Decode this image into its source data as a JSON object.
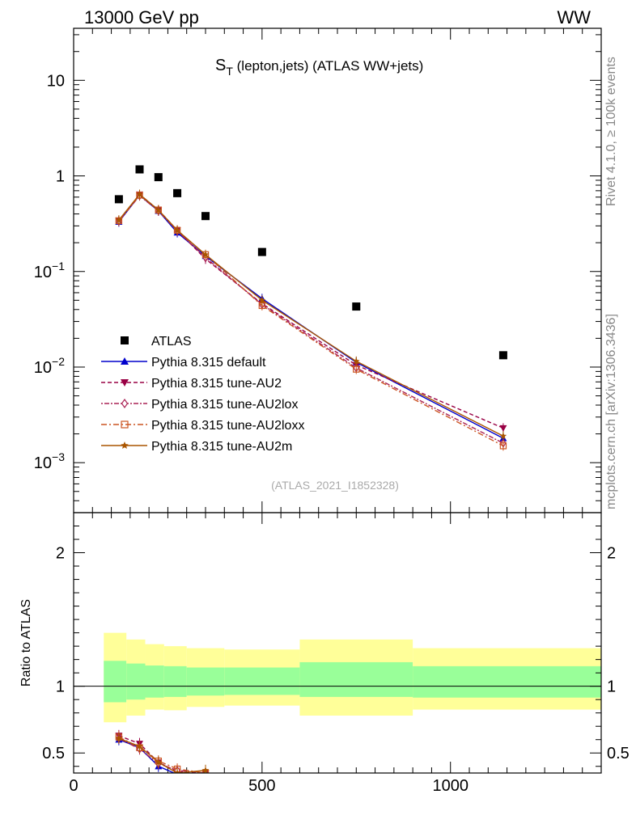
{
  "header": {
    "left_label": "13000 GeV pp",
    "right_label": "WW",
    "side_label_top": "Rivet 4.1.0, ≥ 100k events",
    "side_label_bottom": "mcplots.cern.ch [arXiv:1306.3436]"
  },
  "chart_data": [
    {
      "type": "line",
      "panel": "main",
      "title_main": "S",
      "title_sub": "T",
      "title_rest": " (lepton,jets) (ATLAS WW+jets)",
      "watermark": "(ATLAS_2021_I1852328)",
      "yscale": "log",
      "ylim": [
        0.0003,
        35
      ],
      "xlim": [
        0,
        1400
      ],
      "ytick_labels": [
        {
          "value": 10,
          "base": "10",
          "exp": ""
        },
        {
          "value": 1,
          "base": "1",
          "exp": ""
        },
        {
          "value": 0.1,
          "base": "10",
          "exp": "−1"
        },
        {
          "value": 0.01,
          "base": "10",
          "exp": "−2"
        },
        {
          "value": 0.001,
          "base": "10",
          "exp": "−3"
        }
      ],
      "data": {
        "name": "ATLAS",
        "x": [
          120,
          175,
          225,
          275,
          350,
          500,
          750,
          1140
        ],
        "y": [
          0.57,
          1.17,
          0.97,
          0.66,
          0.38,
          0.16,
          0.043,
          0.0133
        ]
      },
      "series": [
        {
          "name": "Pythia 8.315 default",
          "color": "#0000cc",
          "dash": "",
          "marker": "triangle-up",
          "x": [
            120,
            175,
            225,
            275,
            350,
            500,
            750,
            1140
          ],
          "y": [
            0.33,
            0.63,
            0.43,
            0.255,
            0.145,
            0.052,
            0.0112,
            0.0018
          ]
        },
        {
          "name": "Pythia 8.315 tune-AU2",
          "color": "#990044",
          "dash": "5,3",
          "marker": "triangle-down",
          "x": [
            120,
            175,
            225,
            275,
            350,
            500,
            750,
            1140
          ],
          "y": [
            0.34,
            0.64,
            0.44,
            0.27,
            0.135,
            0.046,
            0.0105,
            0.0023
          ]
        },
        {
          "name": "Pythia 8.315 tune-AU2lox",
          "color": "#aa2255",
          "dash": "2,2,6,2",
          "marker": "diamond",
          "x": [
            120,
            175,
            225,
            275,
            350,
            500,
            750,
            1140
          ],
          "y": [
            0.335,
            0.62,
            0.43,
            0.265,
            0.14,
            0.045,
            0.0098,
            0.0016
          ]
        },
        {
          "name": "Pythia 8.315 tune-AU2loxx",
          "color": "#cc5522",
          "dash": "7,3,2,3",
          "marker": "square",
          "x": [
            120,
            175,
            225,
            275,
            350,
            500,
            750,
            1140
          ],
          "y": [
            0.34,
            0.63,
            0.44,
            0.27,
            0.15,
            0.044,
            0.0095,
            0.0015
          ]
        },
        {
          "name": "Pythia 8.315 tune-AU2m",
          "color": "#aa5500",
          "dash": "",
          "marker": "star",
          "x": [
            120,
            175,
            225,
            275,
            350,
            500,
            750,
            1140
          ],
          "y": [
            0.345,
            0.64,
            0.44,
            0.27,
            0.15,
            0.05,
            0.0115,
            0.0019
          ]
        }
      ],
      "legend_placement": "lower-left"
    },
    {
      "type": "line",
      "panel": "ratio",
      "ylabel": "Ratio to ATLAS",
      "ylim": [
        0.35,
        2.3
      ],
      "xlim": [
        0,
        1400
      ],
      "ytick_labels": [
        "0.5",
        "1",
        "2"
      ],
      "xtick_labels": [
        "0",
        "500",
        "1000"
      ],
      "bands": {
        "bins": [
          [
            80,
            140
          ],
          [
            140,
            190
          ],
          [
            190,
            240
          ],
          [
            240,
            300
          ],
          [
            300,
            400
          ],
          [
            400,
            600
          ],
          [
            600,
            900
          ],
          [
            900,
            1400
          ]
        ],
        "inner_lo": [
          0.88,
          0.9,
          0.915,
          0.92,
          0.93,
          0.935,
          0.92,
          0.915
        ],
        "inner_hi": [
          1.19,
          1.17,
          1.155,
          1.15,
          1.14,
          1.14,
          1.18,
          1.15
        ],
        "outer_lo": [
          0.73,
          0.78,
          0.825,
          0.82,
          0.845,
          0.855,
          0.78,
          0.825
        ],
        "outer_hi": [
          1.4,
          1.35,
          1.315,
          1.3,
          1.285,
          1.275,
          1.35,
          1.285
        ],
        "inner_color": "#99ff99",
        "outer_color": "#ffff99"
      },
      "series": [
        {
          "name": "Pythia 8.315 default",
          "x": [
            120,
            175,
            225,
            275,
            350
          ],
          "y": [
            0.6,
            0.54,
            0.4,
            0.34,
            0.35
          ]
        },
        {
          "name": "Pythia 8.315 tune-AU2",
          "x": [
            120,
            175,
            225,
            275,
            350
          ],
          "y": [
            0.63,
            0.57,
            0.43,
            0.36,
            0.35
          ]
        },
        {
          "name": "Pythia 8.315 tune-AU2lox",
          "x": [
            120,
            175,
            225,
            275,
            350
          ],
          "y": [
            0.61,
            0.53,
            0.42,
            0.37,
            0.35
          ]
        },
        {
          "name": "Pythia 8.315 tune-AU2loxx",
          "x": [
            120,
            175,
            225,
            275,
            350
          ],
          "y": [
            0.62,
            0.54,
            0.44,
            0.38,
            0.35
          ]
        },
        {
          "name": "Pythia 8.315 tune-AU2m",
          "x": [
            120,
            175,
            225,
            275,
            350
          ],
          "y": [
            0.61,
            0.55,
            0.43,
            0.35,
            0.37
          ]
        }
      ]
    }
  ]
}
